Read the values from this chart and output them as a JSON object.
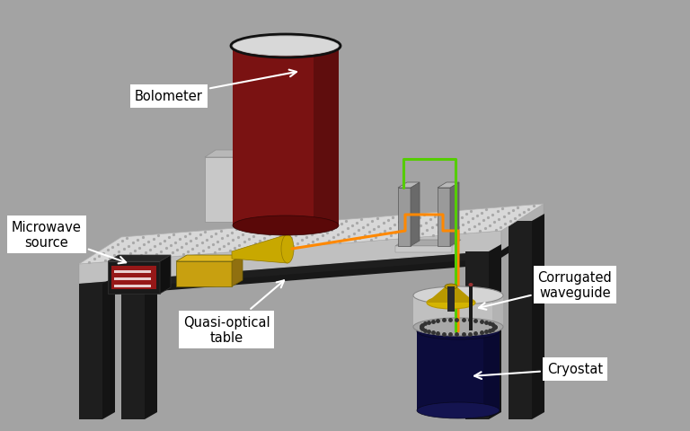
{
  "bg_color": "#a3a3a3",
  "labels": {
    "bolometer": "Bolometer",
    "microwave": "Microwave\nsource",
    "table": "Quasi-optical\ntable",
    "waveguide": "Corrugated\nwaveguide",
    "cryostat": "Cryostat"
  },
  "arrow_color": "white",
  "green": "#55cc00",
  "orange": "#ff8800",
  "colors": {
    "table_top_face": "#d8d8d8",
    "table_top_dot": "#b0b0b0",
    "table_front_face": "#c0c0c0",
    "table_right_face": "#b0b0b0",
    "table_apron_front": "#1e1e1e",
    "table_apron_right": "#141414",
    "table_apron_top": "#282828",
    "leg_front": "#1e1e1e",
    "leg_side": "#141414",
    "cyl_body": "#7a1212",
    "cyl_dark": "#4a0a0a",
    "cyl_top": "#d8d8d8",
    "cyl_top_rim": "#1a1a1a",
    "gbox_front": "#c8c8c8",
    "gbox_side": "#a8a8a8",
    "gbox_top": "#b8b8b8",
    "mw_front": "#1a1a1a",
    "mw_side": "#101010",
    "mw_top": "#252525",
    "mw_label": "#cc2020",
    "gold_front": "#c8a010",
    "gold_side": "#907010",
    "gold_top": "#e0b820",
    "horn_body": "#c8a800",
    "horn_dark": "#907800",
    "mir_face": "#9a9a9a",
    "mir_side": "#6a6a6a",
    "mir_top": "#b8b8b8",
    "mir_base": "#a8a8a8",
    "cryo_body": "#0c0c3c",
    "cryo_side": "#080828",
    "cryo_bot": "#141450",
    "wg_top": "#d4d4d4",
    "wg_body": "#c0c0c0",
    "wg_bot": "#a8a8a8",
    "wg_rim": "#888888",
    "cone_top": "#d4b400",
    "cone_body": "#b89800",
    "cone_stem": "#2a2a2a",
    "rod": "#1a1a1a",
    "rod_tip": "#993333"
  }
}
